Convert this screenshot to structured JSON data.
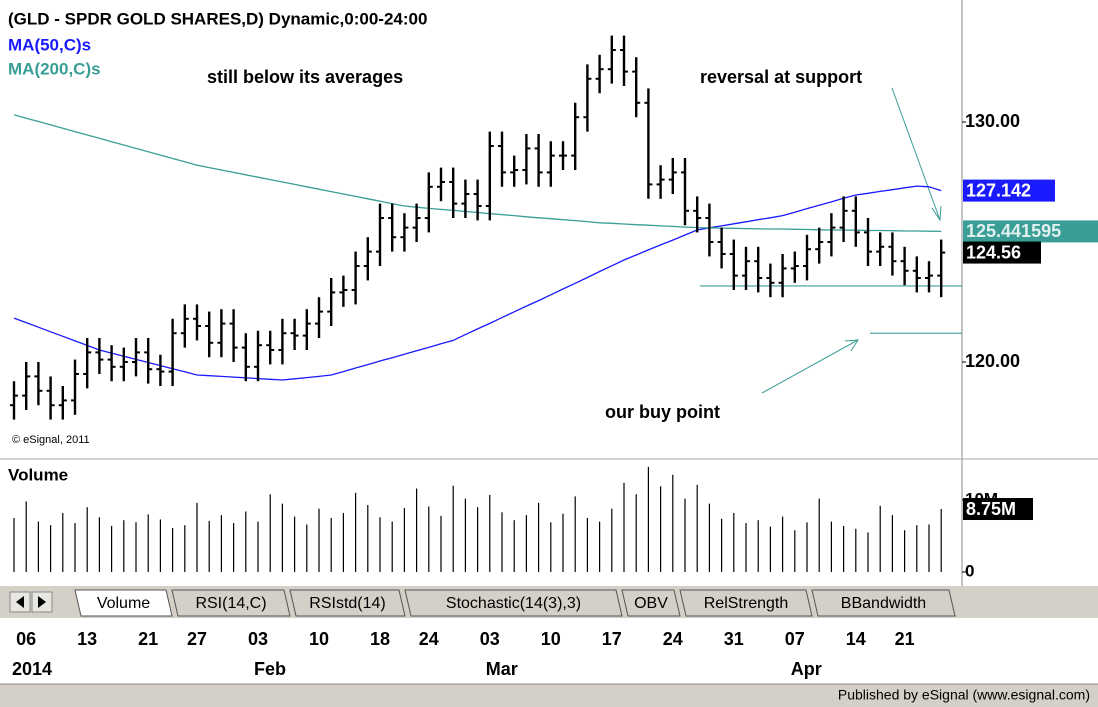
{
  "chart_data": {
    "type": "ohlc",
    "title": "(GLD - SPDR GOLD SHARES,D) Dynamic,0:00-24:00",
    "categories": [
      null,
      "06",
      null,
      null,
      null,
      null,
      "13",
      null,
      null,
      null,
      null,
      "21",
      null,
      null,
      null,
      "27",
      null,
      null,
      null,
      null,
      "03",
      null,
      null,
      null,
      null,
      "10",
      null,
      null,
      null,
      null,
      "18",
      null,
      null,
      null,
      "24",
      null,
      null,
      null,
      null,
      "03",
      null,
      null,
      null,
      null,
      "10",
      null,
      null,
      null,
      null,
      "17",
      null,
      null,
      null,
      null,
      "24",
      null,
      null,
      null,
      null,
      "31",
      null,
      null,
      null,
      null,
      "07",
      null,
      null,
      null,
      null,
      "14",
      null,
      null,
      null,
      "21",
      null,
      null,
      null
    ],
    "months": [
      null,
      "2014",
      null,
      null,
      null,
      null,
      null,
      null,
      null,
      null,
      null,
      null,
      null,
      null,
      null,
      null,
      null,
      null,
      null,
      null,
      "Feb",
      null,
      null,
      null,
      null,
      null,
      null,
      null,
      null,
      null,
      null,
      null,
      null,
      null,
      null,
      null,
      null,
      null,
      null,
      "Mar",
      null,
      null,
      null,
      null,
      null,
      null,
      null,
      null,
      null,
      null,
      null,
      null,
      null,
      null,
      null,
      null,
      null,
      null,
      null,
      null,
      null,
      null,
      null,
      null,
      "Apr",
      null,
      null,
      null,
      null,
      null,
      null,
      null,
      null,
      null,
      null,
      null,
      null
    ],
    "open": [
      118.2,
      118.6,
      119.4,
      118.8,
      118.2,
      118.4,
      119.5,
      120.4,
      120.1,
      119.8,
      120.0,
      120.4,
      119.7,
      119.6,
      121.2,
      121.8,
      121.5,
      120.8,
      121.6,
      120.6,
      119.8,
      120.7,
      120.5,
      121.2,
      121.1,
      121.6,
      122.1,
      122.9,
      123.0,
      124.0,
      124.6,
      126.0,
      125.2,
      125.6,
      126.0,
      127.3,
      127.5,
      126.6,
      127.0,
      126.5,
      129.0,
      127.9,
      128.0,
      128.9,
      127.9,
      128.6,
      128.6,
      130.2,
      131.8,
      132.2,
      133.0,
      132.1,
      130.8,
      127.4,
      127.6,
      127.9,
      126.3,
      126.0,
      125.0,
      124.5,
      123.6,
      124.2,
      123.5,
      123.3,
      123.9,
      124.0,
      124.7,
      125.0,
      125.6,
      126.3,
      125.4,
      124.6,
      124.8,
      124.2,
      123.8,
      123.5,
      123.6
    ],
    "high": [
      119.2,
      120.0,
      120.0,
      119.4,
      119.0,
      120.1,
      121.0,
      121.0,
      120.7,
      120.6,
      121.0,
      121.0,
      120.3,
      121.8,
      122.4,
      122.4,
      122.1,
      122.2,
      122.2,
      121.2,
      121.3,
      121.3,
      121.8,
      121.8,
      122.2,
      122.7,
      123.5,
      123.6,
      124.6,
      125.2,
      126.6,
      126.6,
      126.2,
      126.6,
      127.9,
      128.1,
      128.1,
      127.6,
      127.6,
      129.6,
      129.6,
      128.6,
      129.5,
      129.5,
      129.2,
      129.2,
      130.8,
      132.4,
      132.8,
      133.6,
      133.6,
      132.7,
      131.4,
      128.2,
      128.5,
      128.5,
      126.9,
      126.6,
      125.6,
      125.1,
      124.8,
      124.8,
      124.1,
      124.5,
      124.6,
      125.3,
      125.6,
      126.2,
      126.9,
      126.9,
      126.0,
      125.4,
      125.4,
      124.8,
      124.4,
      124.2,
      125.1
    ],
    "low": [
      117.6,
      118.0,
      118.2,
      117.6,
      117.6,
      117.8,
      118.9,
      119.5,
      119.2,
      119.2,
      119.4,
      119.1,
      119.0,
      119.0,
      120.6,
      120.9,
      120.2,
      120.2,
      120.0,
      119.2,
      119.2,
      119.9,
      119.9,
      120.5,
      120.5,
      121.0,
      121.5,
      122.3,
      122.4,
      123.4,
      124.0,
      124.6,
      124.6,
      125.0,
      125.4,
      126.7,
      126.0,
      126.0,
      125.9,
      125.9,
      127.3,
      127.3,
      127.4,
      127.3,
      127.3,
      128.0,
      128.0,
      129.6,
      131.2,
      131.6,
      131.5,
      130.2,
      126.8,
      126.8,
      127.0,
      125.7,
      125.4,
      124.4,
      123.9,
      123.0,
      123.0,
      122.9,
      122.7,
      122.7,
      123.3,
      123.4,
      124.1,
      124.4,
      125.0,
      124.8,
      124.0,
      124.0,
      123.6,
      123.2,
      122.9,
      122.9,
      122.7
    ],
    "close": [
      118.6,
      119.4,
      118.8,
      118.2,
      118.4,
      119.5,
      120.4,
      120.1,
      119.8,
      120.0,
      120.4,
      119.7,
      119.6,
      121.2,
      121.8,
      121.5,
      120.8,
      121.6,
      120.6,
      119.8,
      120.7,
      120.5,
      121.2,
      121.1,
      121.6,
      122.1,
      122.9,
      123.0,
      124.0,
      124.6,
      126.0,
      125.2,
      125.6,
      126.0,
      127.3,
      127.5,
      126.6,
      127.0,
      126.5,
      129.0,
      127.9,
      128.0,
      128.9,
      127.9,
      128.6,
      128.6,
      130.2,
      131.8,
      132.2,
      133.0,
      132.1,
      130.8,
      127.4,
      127.6,
      127.9,
      126.3,
      126.0,
      125.0,
      124.5,
      123.6,
      124.2,
      123.5,
      123.3,
      123.9,
      124.0,
      124.7,
      125.0,
      125.6,
      126.3,
      125.4,
      124.6,
      124.8,
      124.2,
      123.8,
      123.5,
      123.6,
      124.56
    ],
    "color": "#000000",
    "series": [
      {
        "name": "MA(50,C)s",
        "color": "#1a1aff",
        "values": [
          121.83,
          121.64,
          121.45,
          121.26,
          121.07,
          120.88,
          120.69,
          120.5,
          120.37,
          120.24,
          120.11,
          119.98,
          119.85,
          119.72,
          119.59,
          119.46,
          119.43,
          119.4,
          119.37,
          119.34,
          119.31,
          119.28,
          119.25,
          119.3,
          119.35,
          119.4,
          119.46,
          119.6,
          119.75,
          119.89,
          120.04,
          120.18,
          120.32,
          120.47,
          120.61,
          120.76,
          120.9,
          121.14,
          121.38,
          121.61,
          121.85,
          122.09,
          122.33,
          122.56,
          122.8,
          123.04,
          123.28,
          123.52,
          123.77,
          124.01,
          124.25,
          124.46,
          124.67,
          124.88,
          125.08,
          125.29,
          125.5,
          125.59,
          125.67,
          125.76,
          125.84,
          125.93,
          126.01,
          126.1,
          126.24,
          126.39,
          126.53,
          126.67,
          126.82,
          126.96,
          127.03,
          127.11,
          127.18,
          127.26,
          127.33,
          127.3,
          127.142
        ]
      },
      {
        "name": "MA(200,C)s",
        "color": "#3a9e96",
        "values": [
          130.3,
          130.16,
          130.02,
          129.88,
          129.74,
          129.6,
          129.46,
          129.32,
          129.18,
          129.04,
          128.9,
          128.76,
          128.62,
          128.48,
          128.34,
          128.2,
          128.1,
          128.0,
          127.9,
          127.8,
          127.7,
          127.6,
          127.5,
          127.4,
          127.3,
          127.2,
          127.1,
          127.0,
          126.9,
          126.8,
          126.7,
          126.6,
          126.5,
          126.45,
          126.4,
          126.36,
          126.32,
          126.27,
          126.23,
          126.18,
          126.14,
          126.1,
          126.05,
          126.01,
          125.97,
          125.93,
          125.89,
          125.85,
          125.8,
          125.78,
          125.75,
          125.72,
          125.7,
          125.67,
          125.65,
          125.62,
          125.6,
          125.59,
          125.58,
          125.57,
          125.56,
          125.55,
          125.54,
          125.54,
          125.53,
          125.52,
          125.51,
          125.5,
          125.5,
          125.49,
          125.48,
          125.48,
          125.47,
          125.46,
          125.46,
          125.45,
          125.441595
        ]
      }
    ],
    "ylim": [
      116.125,
      134.75
    ],
    "yticks": [
      {
        "value": 130,
        "label": "130.00"
      },
      {
        "value": 120,
        "label": "120.00"
      }
    ],
    "levels": [
      123.17,
      121.2
    ],
    "level_color": "#3a9e96",
    "annotations": [
      "still below its averages",
      "reversal at support",
      "our buy point"
    ],
    "copyright": "© eSignal, 2011",
    "volume": {
      "name": "Volume",
      "color": "#000000",
      "values": [
        7.5,
        9.8,
        7.0,
        6.5,
        8.2,
        6.8,
        9.0,
        7.6,
        6.4,
        7.2,
        6.9,
        8.0,
        7.3,
        6.1,
        6.5,
        9.6,
        7.1,
        7.9,
        6.8,
        8.4,
        7.0,
        10.8,
        9.5,
        7.7,
        6.6,
        8.8,
        7.5,
        8.2,
        11.0,
        9.3,
        7.6,
        7.0,
        8.9,
        11.6,
        9.1,
        7.8,
        12.0,
        10.2,
        9.0,
        10.7,
        8.3,
        7.2,
        7.9,
        9.6,
        6.9,
        8.1,
        10.5,
        7.5,
        7.0,
        8.8,
        12.4,
        10.8,
        14.6,
        11.9,
        13.5,
        10.2,
        12.1,
        9.5,
        7.4,
        8.2,
        6.8,
        7.2,
        6.3,
        7.7,
        5.8,
        6.9,
        10.2,
        7.0,
        6.4,
        6.0,
        5.5,
        9.2,
        7.9,
        5.8,
        6.5,
        6.6,
        8.75
      ],
      "last_value_label": "8.75M",
      "ylim": [
        0,
        15.28
      ],
      "yticks": [
        {
          "value": 10,
          "label": "10M"
        },
        0
      ]
    }
  },
  "tabs": [
    "Volume",
    "RSI(14,C)",
    "RSIstd(14)",
    "Stochastic(14(3),3)",
    "OBV",
    "RelStrength",
    "BBandwidth"
  ],
  "footer": "Published by eSignal (www.esignal.com)"
}
